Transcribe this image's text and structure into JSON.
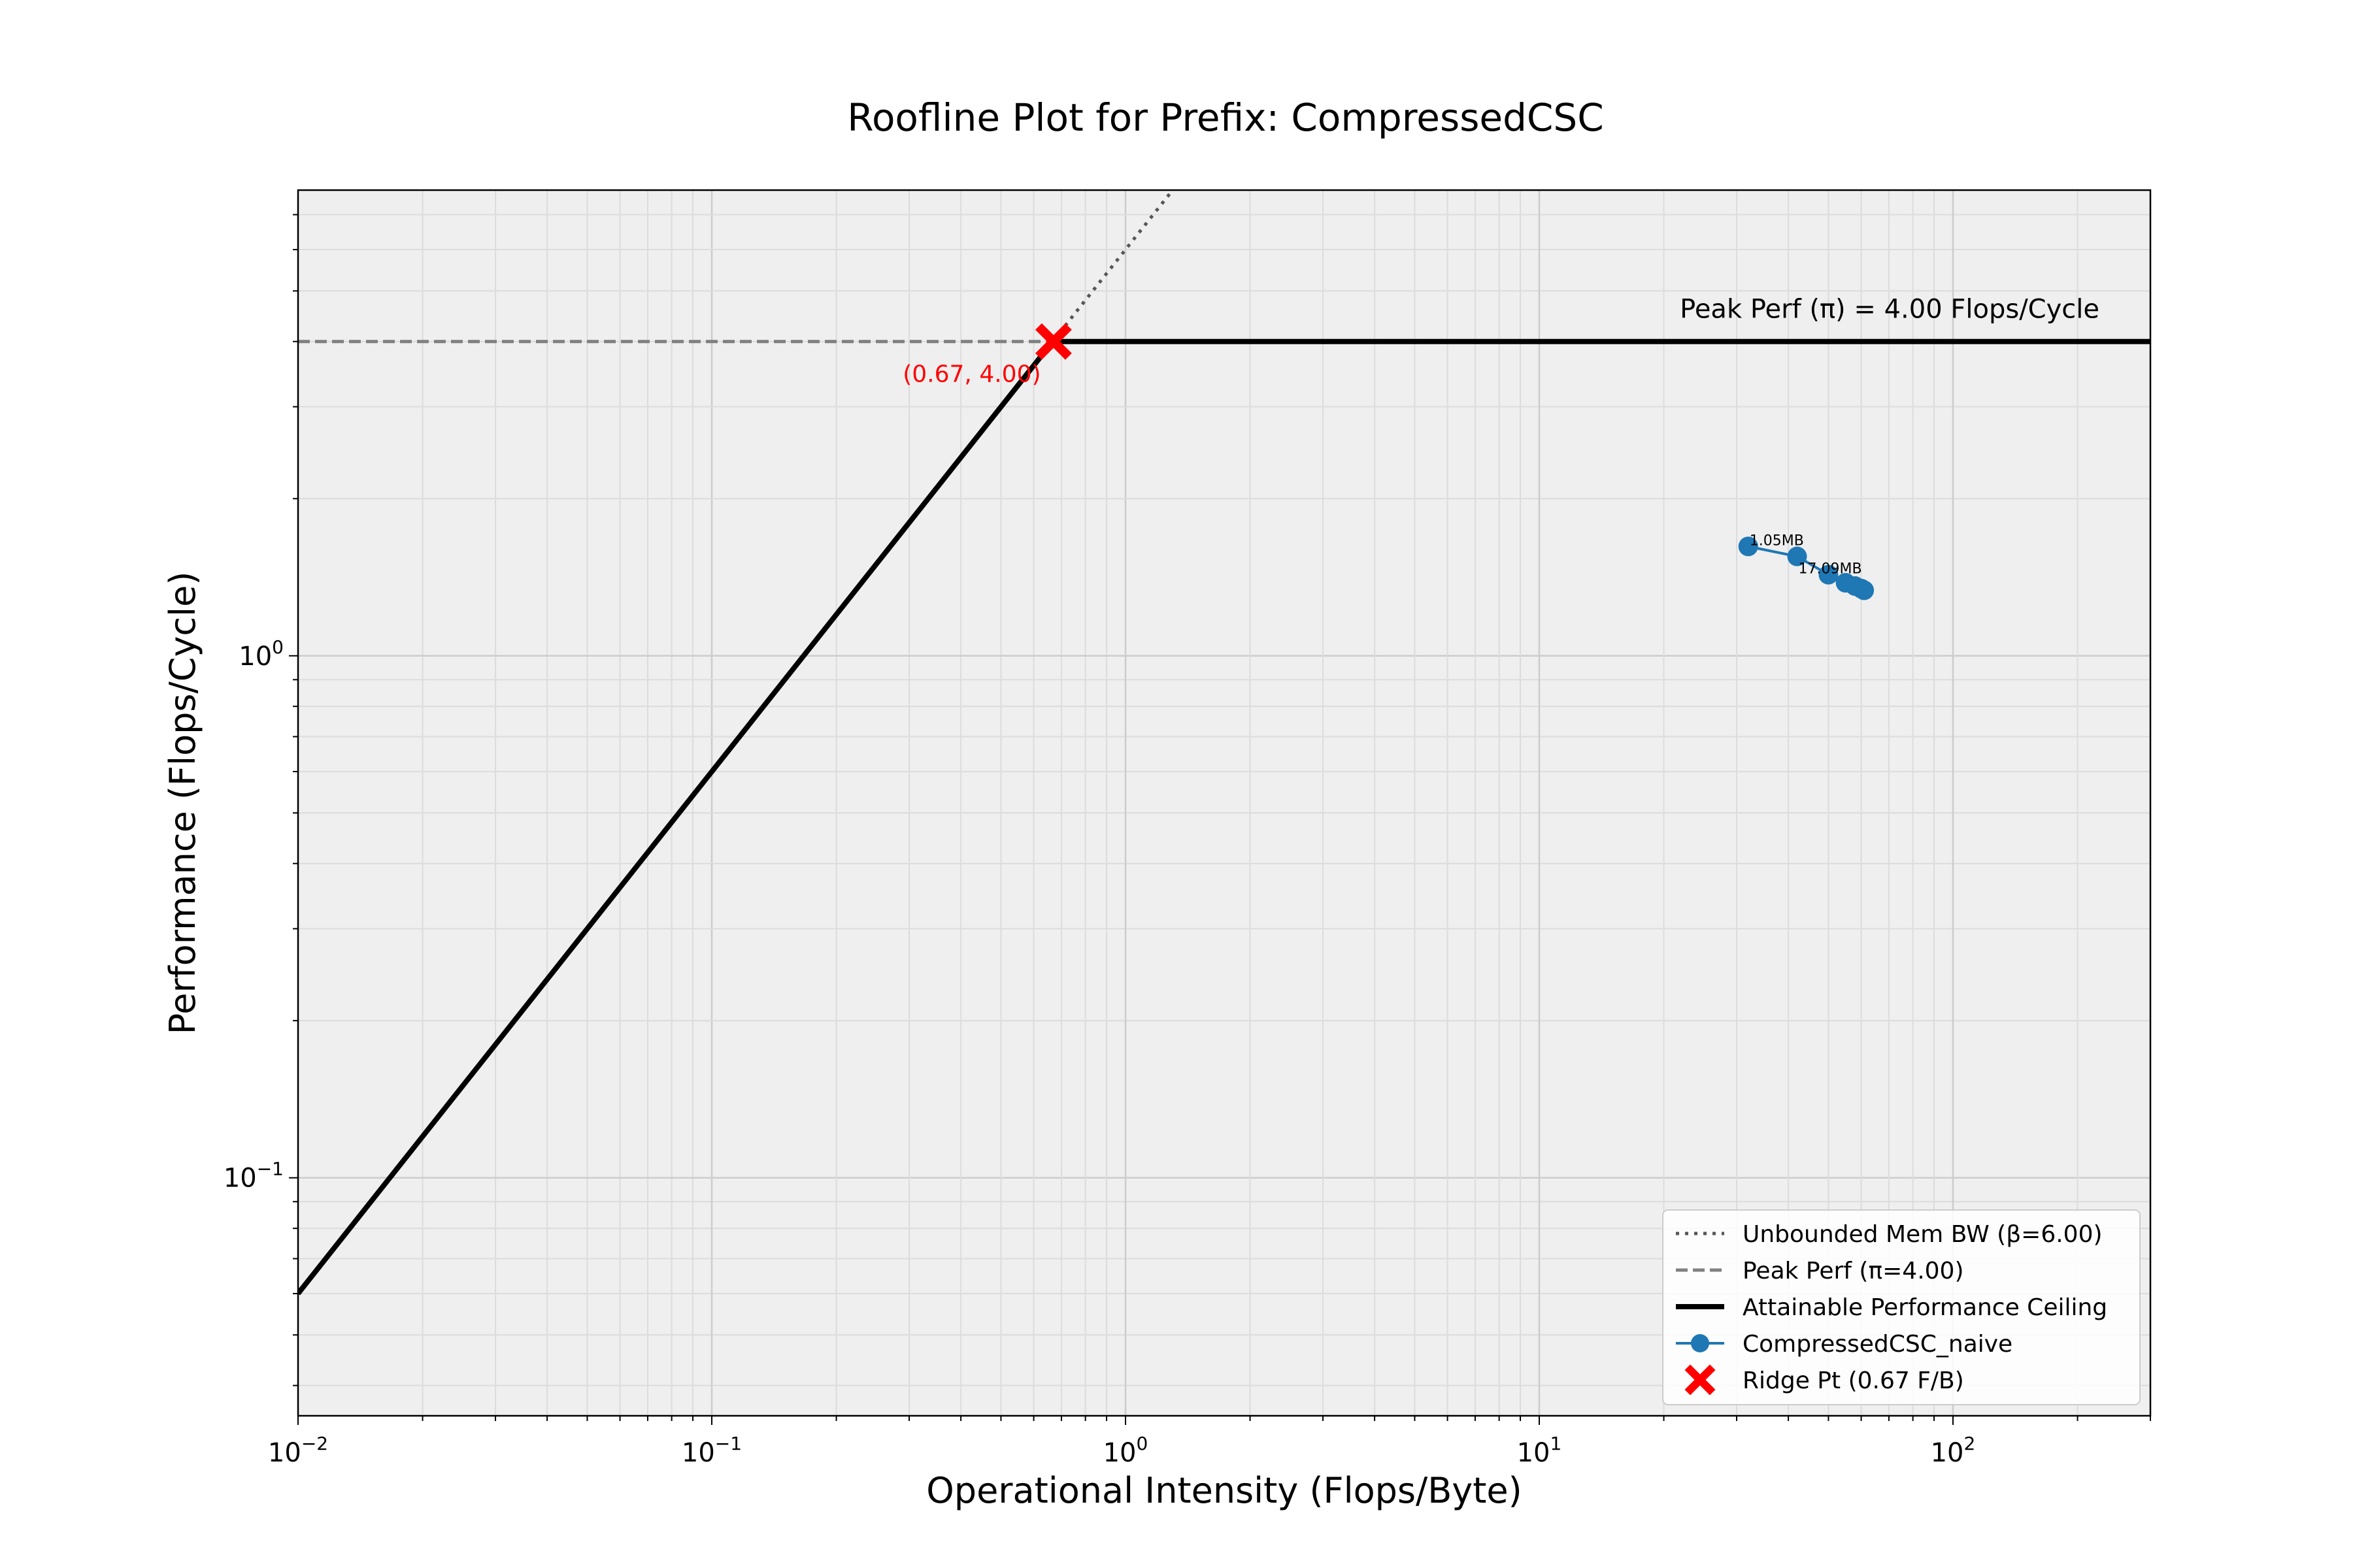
{
  "chart_data": {
    "type": "line",
    "title": "Roofline Plot for Prefix: CompressedCSC",
    "xlabel": "Operational Intensity (Flops/Byte)",
    "ylabel": "Performance (Flops/Cycle)",
    "xscale": "log",
    "yscale": "log",
    "xlim": [
      0.01,
      300
    ],
    "ylim": [
      0.035,
      7.8
    ],
    "grid": "both (major and minor)",
    "legend_position": "lower-right",
    "x_ticks": [
      {
        "value": 0.01,
        "base": "10",
        "exp": "−2"
      },
      {
        "value": 0.1,
        "base": "10",
        "exp": "−1"
      },
      {
        "value": 1,
        "base": "10",
        "exp": "0"
      },
      {
        "value": 10,
        "base": "10",
        "exp": "1"
      },
      {
        "value": 100,
        "base": "10",
        "exp": "2"
      }
    ],
    "y_ticks": [
      {
        "value": 0.1,
        "base": "10",
        "exp": "−1"
      },
      {
        "value": 1,
        "base": "10",
        "exp": "0"
      }
    ],
    "beta": 6.0,
    "pi": 4.0,
    "ridge_point": {
      "x": 0.67,
      "y": 4.0,
      "label": "(0.67, 4.00)"
    },
    "peak_annotation": "Peak Perf (π) = 4.00 Flops/Cycle",
    "series": [
      {
        "name": "Unbounded Mem BW (β=6.00)",
        "style": "dotted",
        "color": "#555555",
        "x": [
          0.01,
          1.3
        ],
        "y": [
          0.06,
          7.8
        ]
      },
      {
        "name": "Peak Perf (π=4.00)",
        "style": "dashed",
        "color": "#808080",
        "x": [
          0.01,
          0.67
        ],
        "y": [
          4.0,
          4.0
        ]
      },
      {
        "name": "Attainable Performance Ceiling",
        "style": "solid",
        "color": "#000000",
        "x": [
          0.01,
          0.667,
          300
        ],
        "y": [
          0.06,
          4.0,
          4.0
        ]
      },
      {
        "name": "CompressedCSC_naive",
        "style": "line-marker",
        "color": "#1f77b4",
        "x": [
          32,
          42,
          50,
          55,
          58,
          60,
          61
        ],
        "y": [
          1.62,
          1.55,
          1.43,
          1.38,
          1.36,
          1.345,
          1.335
        ]
      },
      {
        "name": "Ridge Pt (0.67 F/B)",
        "style": "x-marker",
        "color": "#ff0000",
        "x": [
          0.67
        ],
        "y": [
          4.0
        ]
      }
    ],
    "point_labels": [
      {
        "text": "1.05MB",
        "x": 32,
        "y": 1.62
      },
      {
        "text": "17.09MB",
        "x": 42,
        "y": 1.43
      }
    ]
  }
}
